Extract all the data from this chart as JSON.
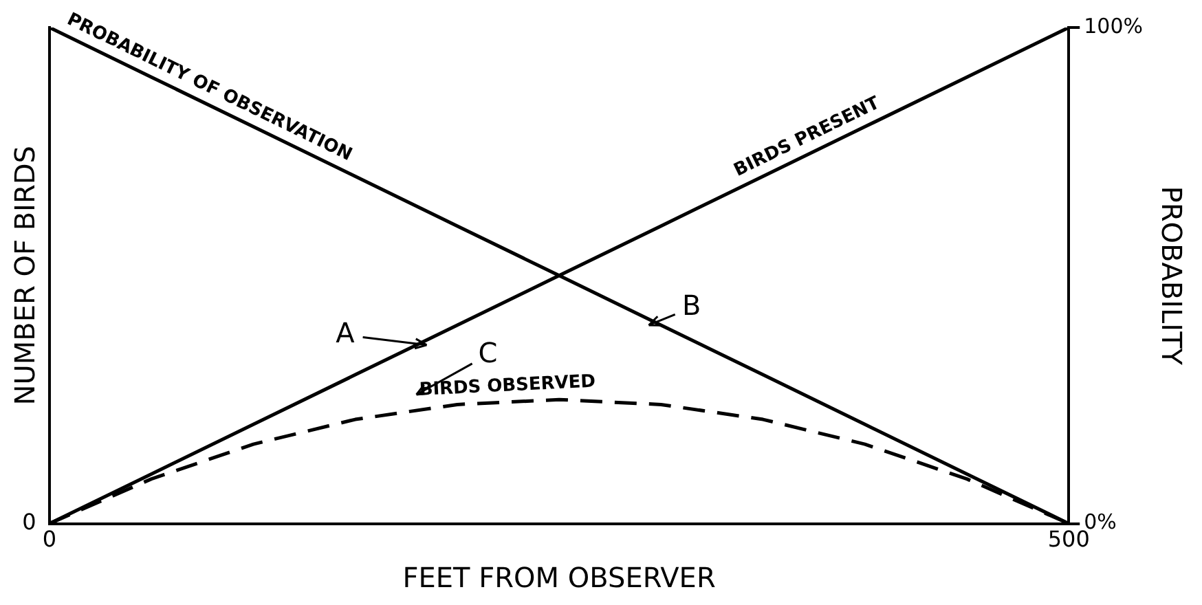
{
  "chart_data": {
    "type": "line",
    "xlabel": "FEET FROM OBSERVER",
    "ylabel": "NUMBER OF BIRDS",
    "y2label": "PROBABILITY",
    "x": [
      0,
      50,
      100,
      150,
      200,
      250,
      300,
      350,
      400,
      450,
      500
    ],
    "xlim": [
      0,
      500
    ],
    "xticks": [
      0,
      500
    ],
    "y2lim": [
      0,
      100
    ],
    "y2ticks": [
      {
        "value": 0,
        "label": "0%"
      },
      {
        "value": 100,
        "label": "100%"
      }
    ],
    "grid": false,
    "legend": false,
    "marker": "none",
    "series": [
      {
        "name": "PROBABILITY OF OBSERVATION",
        "color": "#000000",
        "axis": "y2",
        "line_style": "solid",
        "values": [
          100,
          90,
          80,
          70,
          60,
          50,
          40,
          30,
          20,
          10,
          0
        ]
      },
      {
        "name": "BIRDS PRESENT",
        "color": "#000000",
        "axis": "y2",
        "line_style": "solid",
        "values": [
          0,
          10,
          20,
          30,
          40,
          50,
          60,
          70,
          80,
          90,
          100
        ]
      },
      {
        "name": "BIRDS OBSERVED",
        "color": "#000000",
        "axis": "y2",
        "line_style": "dashed",
        "values": [
          0,
          9,
          16,
          21,
          24,
          25,
          24,
          21,
          16,
          9,
          0
        ]
      }
    ],
    "annotations": [
      "0",
      "A",
      "B",
      "C"
    ]
  }
}
